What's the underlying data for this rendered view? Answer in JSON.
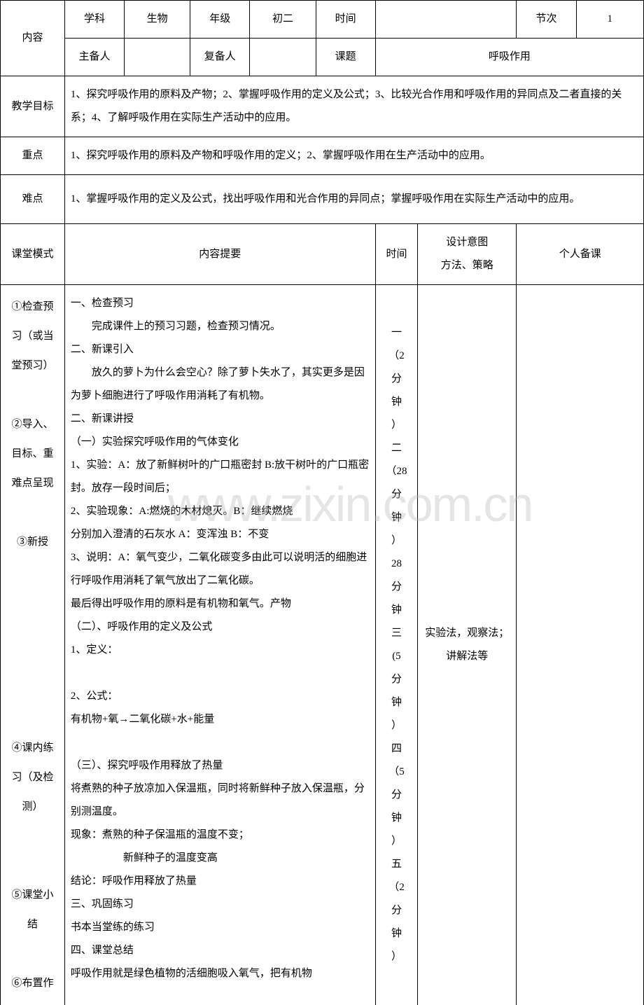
{
  "header": {
    "content_label": "内容",
    "subject_label": "学科",
    "subject_val": "生物",
    "grade_label": "年级",
    "grade_val": "初二",
    "time_label": "时间",
    "time_val": "",
    "section_label": "节次",
    "section_val": "1",
    "prep_label": "主备人",
    "prep_val": "",
    "coprep_label": "复备人",
    "coprep_val": "",
    "topic_label": "课题",
    "topic_val": "呼吸作用"
  },
  "goals": {
    "label": "教学目标",
    "text": "1、探究呼吸作用的原料及产物；2、掌握呼吸作用的定义及公式；3、比较光合作用和呼吸作用的异同点及二者直接的关系；4、了解呼吸作用在实际生产活动中的应用。"
  },
  "key": {
    "label": "重点",
    "text": "1、探究呼吸作用的原料及产物和呼吸作用的定义；2、掌握呼吸作用在生产活动中的应用。"
  },
  "diff": {
    "label": "难点",
    "text": "1、掌握呼吸作用的定义及公式，找出呼吸作用和光合作用的异同点；掌握呼吸作用在实际生产活动中的应用。"
  },
  "mode": {
    "c1": "课堂模式",
    "c2": "内容提要",
    "c3": "时间",
    "c4a": "设计意图",
    "c4b": "方法、策略",
    "c5": "个人备课"
  },
  "body": {
    "steps_label": "①检查预习（或当堂预习）\n\n②导入、目标、重难点呈现\n\n③新授\n\n\n\n\n\n\n④课内练习（及检测）\n\n\n⑤课堂小结\n\n⑥布置作",
    "outline": [
      "一、检查预习",
      "　　完成课件上的预习习题，检查预习情况。",
      "二、新课引入",
      "　　放久的萝卜为什么会空心？除了萝卜失水了，其实更多是因为萝卜细胞进行了呼吸作用消耗了有机物。",
      "二、新课讲授",
      "（一）实验探究呼吸作用的气体变化",
      "1、实验：A：放了新鲜树叶的广口瓶密封 B:放干树叶的广口瓶密封。放存一段时间后；",
      "2、实验现象：A:燃烧的木材熄灭。B：继续燃烧",
      "分别加入澄清的石灰水 A：变浑浊 B：不变",
      "3、说明：A：氧气变少，二氧化碳变多由此可以说明活的细胞进行呼吸作用消耗了氧气放出了二氧化碳。",
      "最后得出呼吸作用的原料是有机物和氧气。产物",
      "（二）、呼吸作用的定义及公式",
      "1、定义：",
      "",
      "2、公式：",
      "有机物+氧→二氧化碳+水+能量",
      "",
      "（三）、探究呼吸作用释放了热量",
      "将煮熟的种子放凉加入保温瓶，同时将新鲜种子放入保温瓶，分别测温度。",
      "现象：煮熟的种子保温瓶的温度不变；",
      "　　　　　新鲜种子的温度变高",
      "结论：呼吸作用释放了热量",
      "三、巩固练习",
      "书本当堂练的练习",
      "四、课堂总结",
      "呼吸作用就是绿色植物的活细胞吸入氧气，把有机物"
    ],
    "time_col": "一（2分钟）二（28分钟）28分钟三(5分钟）四（5分钟）五（2分钟）",
    "methods": "实验法，观察法；讲解法等",
    "personal": ""
  },
  "watermark": "www.zixin.com.cn",
  "colors": {
    "border": "#000000",
    "text": "#000000",
    "bg": "#ffffff",
    "watermark": "rgba(180,180,180,0.35)"
  }
}
